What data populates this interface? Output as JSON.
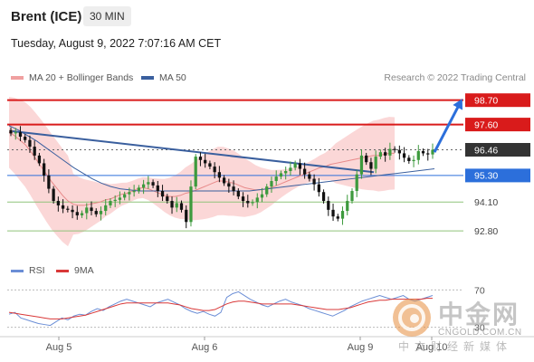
{
  "header": {
    "title": "Brent (ICE)",
    "timeframe": "30 MIN",
    "datetime": "Tuesday, August 9, 2022 7:07:16 AM CET"
  },
  "legend": {
    "bollinger_label": "MA 20 + Bollinger Bands",
    "ma50_label": "MA 50",
    "research": "Research © 2022 Trading Central"
  },
  "rsi_legend": {
    "rsi_label": "RSI",
    "ma9_label": "9MA"
  },
  "watermark": {
    "name": "中金网",
    "url": "CNGOLD.COM.CN",
    "tagline": "中文财经新媒体"
  },
  "colors": {
    "up": "#3d9a3d",
    "down": "#111111",
    "bollinger_fill": "#f9c9c9",
    "ma20": "#e88a8a",
    "ma50": "#3a5f9e",
    "resistance": "#d91b1b",
    "support_blue": "#2c6fdb",
    "support_green": "#8fc37a",
    "trendline": "#3a5f9e",
    "arrow": "#2c6fdb",
    "rsi": "#6b8ed6",
    "ma9": "#d93838"
  },
  "chart_data": {
    "type": "candlestick",
    "instrument": "Brent (ICE)",
    "timeframe": "30 MIN",
    "ylim": [
      91.7,
      99.3
    ],
    "x_ticks": [
      "Aug 5",
      "Aug 6",
      "Aug 9",
      "Aug 10"
    ],
    "levels": [
      {
        "value": 98.7,
        "label": "98.70",
        "kind": "resistance"
      },
      {
        "value": 97.6,
        "label": "97.60",
        "kind": "resistance"
      },
      {
        "value": 96.46,
        "label": "96.46",
        "kind": "current"
      },
      {
        "value": 95.3,
        "label": "95.30",
        "kind": "pivot"
      },
      {
        "value": 94.1,
        "label": "94.10",
        "kind": "support"
      },
      {
        "value": 92.8,
        "label": "92.80",
        "kind": "support"
      }
    ],
    "close_series": [
      97.2,
      97.25,
      97.05,
      96.9,
      96.6,
      96.2,
      95.85,
      95.3,
      94.7,
      94.15,
      93.95,
      93.8,
      93.75,
      93.65,
      93.5,
      93.6,
      93.85,
      93.7,
      93.55,
      93.7,
      93.95,
      94.15,
      94.2,
      94.3,
      94.45,
      94.55,
      94.6,
      94.75,
      94.9,
      95.0,
      94.85,
      94.6,
      94.35,
      94.15,
      93.85,
      94.05,
      93.75,
      93.2,
      94.8,
      96.15,
      96.0,
      95.85,
      95.7,
      95.45,
      95.2,
      94.95,
      94.8,
      94.6,
      94.35,
      94.15,
      94.05,
      94.1,
      94.3,
      94.45,
      94.8,
      95.05,
      95.25,
      95.4,
      95.5,
      95.65,
      95.85,
      95.6,
      95.35,
      95.15,
      94.9,
      94.55,
      94.15,
      93.75,
      93.45,
      93.35,
      93.7,
      94.15,
      94.6,
      95.35,
      96.2,
      95.9,
      95.6,
      96.15,
      96.35,
      96.2,
      96.5,
      96.45,
      96.3,
      96.1,
      95.95,
      96.0,
      96.4,
      96.3,
      96.25,
      96.46
    ],
    "ma20": [
      97.25,
      97.1,
      96.9,
      96.7,
      96.4,
      96.05,
      95.7,
      95.35,
      95.0,
      94.7,
      94.4,
      94.15,
      94.0,
      93.95,
      93.95,
      94.0,
      94.05,
      94.1,
      94.2,
      94.25,
      94.35,
      94.45,
      94.5,
      94.6,
      94.7,
      94.75,
      94.7,
      94.6,
      94.5,
      94.4,
      94.35,
      94.35,
      94.4,
      94.5,
      94.55,
      94.65,
      94.75,
      94.85,
      94.95,
      95.05,
      95.05,
      95.0,
      94.95,
      94.85,
      94.75,
      94.7,
      94.65,
      94.65,
      94.7,
      94.75,
      94.85,
      94.95,
      95.05,
      95.15,
      95.25,
      95.35,
      95.45,
      95.55,
      95.65,
      95.7,
      95.8,
      95.85,
      95.9,
      95.95,
      96.0,
      96.05,
      96.1,
      96.15,
      96.2,
      96.2,
      96.25,
      96.3,
      96.3
    ],
    "ma50": [
      97.55,
      97.35,
      97.1,
      96.85,
      96.55,
      96.25,
      95.95,
      95.65,
      95.4,
      95.15,
      94.95,
      94.8,
      94.7,
      94.65,
      94.6,
      94.6,
      94.6,
      94.6,
      94.6,
      94.6,
      94.6,
      94.6,
      94.6,
      94.6,
      94.6,
      94.6,
      94.6,
      94.65,
      94.7,
      94.75,
      94.8,
      94.85,
      94.9,
      94.95,
      95.0,
      95.05,
      95.1,
      95.15,
      95.2,
      95.25,
      95.3,
      95.35,
      95.4,
      95.45,
      95.5,
      95.55,
      95.6
    ],
    "rsi_levels": [
      {
        "value": 70,
        "label": "70"
      },
      {
        "value": 30,
        "label": "30"
      }
    ],
    "rsi_ylim": [
      20,
      80
    ],
    "rsi_series": [
      44,
      46,
      40,
      38,
      36,
      34,
      33,
      32,
      36,
      40,
      38,
      42,
      44,
      43,
      47,
      50,
      48,
      52,
      55,
      58,
      60,
      58,
      56,
      54,
      52,
      56,
      58,
      60,
      57,
      54,
      50,
      47,
      45,
      47,
      44,
      42,
      46,
      62,
      66,
      68,
      64,
      60,
      57,
      54,
      52,
      55,
      58,
      60,
      57,
      55,
      53,
      50,
      48,
      46,
      44,
      42,
      45,
      48,
      52,
      55,
      58,
      60,
      62,
      64,
      62,
      60,
      62,
      64,
      60,
      58,
      60,
      62,
      64
    ],
    "rsi_ma9": [
      46,
      45,
      44,
      43,
      42,
      41,
      40,
      39,
      39,
      39,
      40,
      41,
      42,
      43,
      45,
      47,
      49,
      51,
      53,
      55,
      56,
      56,
      56,
      56,
      56,
      56,
      56,
      56,
      55,
      54,
      52,
      50,
      49,
      48,
      48,
      49,
      52,
      55,
      57,
      58,
      58,
      57,
      56,
      55,
      55,
      55,
      55,
      55,
      55,
      54,
      53,
      52,
      51,
      50,
      49,
      49,
      49,
      50,
      51,
      53,
      55,
      57,
      58,
      59,
      59,
      60,
      60,
      60,
      60,
      60,
      60,
      61,
      61
    ]
  }
}
